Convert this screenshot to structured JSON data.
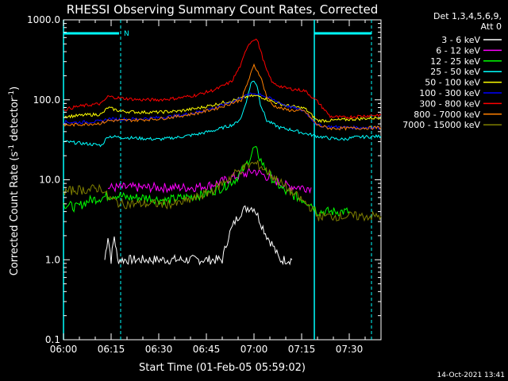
{
  "chart_data": {
    "type": "line",
    "title": "RHESSI Observing Summary Count Rates, Corrected",
    "xlabel": "Start Time (01-Feb-05 05:59:02)",
    "ylabel": "Corrected Count Rate (s",
    "ylabel_sup": "-1",
    "ylabel_mid": " detector",
    "ylabel_sup2": "-1",
    "ylabel_end": ")",
    "ylog": true,
    "ylim": [
      0.1,
      1000
    ],
    "xlim_minutes": [
      0,
      100
    ],
    "x_ticks": [
      "06:00",
      "06:15",
      "06:30",
      "06:45",
      "07:00",
      "07:15",
      "07:30"
    ],
    "y_ticks": [
      "0.1",
      "1.0",
      "10.0",
      "100.0",
      "1000.0"
    ],
    "legend_header": [
      "Det 1,3,4,5,6,9,",
      "Att 0"
    ],
    "legend_position": "right",
    "timestamp": "14-Oct-2021 13:41",
    "night_marker": "N",
    "series": [
      {
        "name": "3 - 6 keV",
        "color": "#ffffff",
        "points": [
          [
            13,
            1
          ],
          [
            14,
            2
          ],
          [
            15,
            1
          ],
          [
            16,
            2
          ],
          [
            17,
            1
          ],
          [
            50,
            1
          ],
          [
            52,
            2
          ],
          [
            54,
            3
          ],
          [
            56,
            4
          ],
          [
            58,
            4.5
          ],
          [
            60,
            4.5
          ],
          [
            62,
            3
          ],
          [
            64,
            2
          ],
          [
            66,
            1.5
          ],
          [
            68,
            1
          ],
          [
            72,
            1
          ]
        ]
      },
      {
        "name": "6 - 12 keV",
        "color": "#ff00ff",
        "points": [
          [
            14,
            8
          ],
          [
            20,
            8
          ],
          [
            30,
            8
          ],
          [
            40,
            8
          ],
          [
            46,
            8.5
          ],
          [
            50,
            9.5
          ],
          [
            54,
            11
          ],
          [
            58,
            12
          ],
          [
            60,
            13
          ],
          [
            62,
            12
          ],
          [
            66,
            10
          ],
          [
            70,
            8.5
          ],
          [
            76,
            8
          ],
          [
            78,
            8
          ]
        ]
      },
      {
        "name": "12 - 25 keV",
        "color": "#00ff00",
        "points": [
          [
            0,
            5
          ],
          [
            4,
            4.5
          ],
          [
            8,
            5.5
          ],
          [
            12,
            6
          ],
          [
            16,
            6.5
          ],
          [
            20,
            6
          ],
          [
            26,
            6
          ],
          [
            32,
            5.5
          ],
          [
            38,
            6
          ],
          [
            44,
            6.5
          ],
          [
            50,
            8
          ],
          [
            54,
            10
          ],
          [
            57,
            14
          ],
          [
            59,
            20
          ],
          [
            60,
            25
          ],
          [
            61,
            22
          ],
          [
            63,
            15
          ],
          [
            66,
            10
          ],
          [
            70,
            7
          ],
          [
            74,
            6
          ],
          [
            78,
            5
          ],
          [
            80,
            4
          ],
          [
            84,
            4
          ],
          [
            90,
            4
          ]
        ]
      },
      {
        "name": "25 - 50 keV",
        "color": "#00ffff",
        "points": [
          [
            0,
            30
          ],
          [
            4,
            29
          ],
          [
            8,
            28
          ],
          [
            12,
            27
          ],
          [
            14,
            35
          ],
          [
            18,
            34
          ],
          [
            24,
            33
          ],
          [
            30,
            32
          ],
          [
            36,
            34
          ],
          [
            42,
            37
          ],
          [
            48,
            42
          ],
          [
            54,
            50
          ],
          [
            56,
            60
          ],
          [
            58,
            110
          ],
          [
            59,
            160
          ],
          [
            60,
            175
          ],
          [
            61,
            150
          ],
          [
            62,
            90
          ],
          [
            64,
            55
          ],
          [
            68,
            45
          ],
          [
            72,
            42
          ],
          [
            76,
            38
          ],
          [
            80,
            35
          ],
          [
            84,
            33
          ],
          [
            88,
            32
          ],
          [
            92,
            34
          ],
          [
            100,
            35
          ]
        ]
      },
      {
        "name": "50 - 100 keV",
        "color": "#ffff00",
        "points": [
          [
            0,
            62
          ],
          [
            4,
            63
          ],
          [
            8,
            65
          ],
          [
            12,
            66
          ],
          [
            14,
            80
          ],
          [
            18,
            72
          ],
          [
            24,
            70
          ],
          [
            30,
            70
          ],
          [
            36,
            72
          ],
          [
            42,
            78
          ],
          [
            48,
            88
          ],
          [
            54,
            100
          ],
          [
            58,
            110
          ],
          [
            60,
            112
          ],
          [
            62,
            110
          ],
          [
            66,
            95
          ],
          [
            70,
            85
          ],
          [
            76,
            78
          ],
          [
            80,
            55
          ],
          [
            84,
            55
          ],
          [
            90,
            57
          ],
          [
            100,
            60
          ]
        ]
      },
      {
        "name": "100 - 300 keV",
        "color": "#0000ff",
        "points": [
          [
            0,
            53
          ],
          [
            4,
            52
          ],
          [
            8,
            53
          ],
          [
            12,
            54
          ],
          [
            14,
            58
          ],
          [
            18,
            57
          ],
          [
            24,
            58
          ],
          [
            30,
            60
          ],
          [
            36,
            63
          ],
          [
            42,
            70
          ],
          [
            48,
            80
          ],
          [
            54,
            98
          ],
          [
            58,
            115
          ],
          [
            60,
            120
          ],
          [
            62,
            118
          ],
          [
            66,
            100
          ],
          [
            70,
            85
          ],
          [
            76,
            72
          ],
          [
            80,
            48
          ],
          [
            84,
            46
          ],
          [
            90,
            45
          ],
          [
            100,
            45
          ]
        ]
      },
      {
        "name": "300 - 800 keV",
        "color": "#ff0000",
        "points": [
          [
            0,
            75
          ],
          [
            4,
            82
          ],
          [
            8,
            86
          ],
          [
            12,
            90
          ],
          [
            14,
            110
          ],
          [
            18,
            105
          ],
          [
            24,
            100
          ],
          [
            30,
            100
          ],
          [
            36,
            105
          ],
          [
            42,
            115
          ],
          [
            48,
            135
          ],
          [
            53,
            170
          ],
          [
            56,
            280
          ],
          [
            58,
            480
          ],
          [
            60,
            580
          ],
          [
            61,
            560
          ],
          [
            62,
            420
          ],
          [
            64,
            230
          ],
          [
            66,
            160
          ],
          [
            70,
            140
          ],
          [
            76,
            130
          ],
          [
            80,
            95
          ],
          [
            84,
            62
          ],
          [
            88,
            60
          ],
          [
            92,
            62
          ],
          [
            100,
            65
          ]
        ]
      },
      {
        "name": "800 - 7000 keV",
        "color": "#ff8000",
        "points": [
          [
            0,
            48
          ],
          [
            4,
            49
          ],
          [
            8,
            50
          ],
          [
            12,
            51
          ],
          [
            14,
            55
          ],
          [
            18,
            55
          ],
          [
            24,
            56
          ],
          [
            30,
            58
          ],
          [
            36,
            62
          ],
          [
            42,
            68
          ],
          [
            48,
            78
          ],
          [
            52,
            88
          ],
          [
            56,
            100
          ],
          [
            60,
            270
          ],
          [
            62,
            200
          ],
          [
            64,
            110
          ],
          [
            66,
            85
          ],
          [
            70,
            75
          ],
          [
            76,
            72
          ],
          [
            80,
            48
          ],
          [
            84,
            44
          ],
          [
            90,
            44
          ],
          [
            100,
            45
          ]
        ]
      },
      {
        "name": "7000 - 15000 keV",
        "color": "#808000",
        "points": [
          [
            0,
            7
          ],
          [
            4,
            7.5
          ],
          [
            8,
            7.5
          ],
          [
            12,
            8
          ],
          [
            14,
            6
          ],
          [
            18,
            5
          ],
          [
            24,
            5
          ],
          [
            30,
            5
          ],
          [
            36,
            5
          ],
          [
            42,
            6
          ],
          [
            46,
            7
          ],
          [
            50,
            9
          ],
          [
            54,
            12
          ],
          [
            58,
            15
          ],
          [
            60,
            16
          ],
          [
            62,
            15
          ],
          [
            66,
            11
          ],
          [
            70,
            8
          ],
          [
            74,
            6
          ],
          [
            78,
            4.5
          ],
          [
            80,
            3.5
          ],
          [
            86,
            3.5
          ],
          [
            94,
            3.5
          ],
          [
            100,
            3.5
          ]
        ]
      }
    ]
  }
}
